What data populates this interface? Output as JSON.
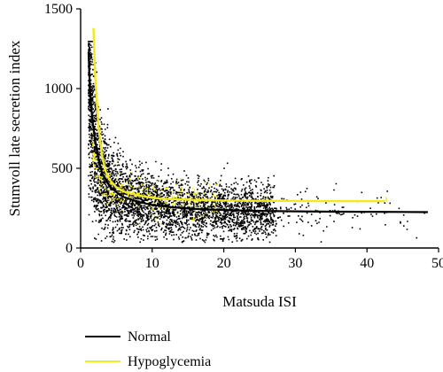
{
  "chart_data": {
    "type": "scatter",
    "title": "",
    "xlabel": "Matsuda ISI",
    "ylabel": "Stumvoll late secretion index",
    "xlim": [
      0,
      50
    ],
    "ylim": [
      0,
      1500
    ],
    "x_ticks": [
      "0",
      "10",
      "20",
      "30",
      "40",
      "50"
    ],
    "y_ticks": [
      "0",
      "500",
      "1000",
      "1500"
    ],
    "grid": false,
    "legend_position": "bottom-left",
    "series": [
      {
        "name": "Normal",
        "color": "#000000",
        "points_description": "dense scatter",
        "fit_curve": {
          "x": [
            1.1,
            1.3,
            1.6,
            2,
            2.5,
            3,
            4,
            5,
            6,
            8,
            10,
            13,
            16,
            20,
            25,
            30,
            35,
            40,
            45,
            48.5
          ],
          "y": [
            1230,
            1000,
            820,
            680,
            560,
            470,
            390,
            350,
            320,
            290,
            270,
            255,
            245,
            238,
            233,
            230,
            228,
            227,
            226,
            225
          ]
        },
        "scatter_density": "high"
      },
      {
        "name": "Hypoglycemia",
        "color": "#f2ea1e",
        "fit_curve": {
          "x": [
            1.8,
            2,
            2.5,
            3,
            3.5,
            4,
            5,
            6,
            8,
            10,
            12,
            15,
            20,
            25,
            30,
            35,
            40,
            42.5
          ],
          "y": [
            1380,
            1100,
            760,
            580,
            480,
            430,
            380,
            355,
            330,
            315,
            308,
            302,
            298,
            296,
            295,
            294,
            294,
            294
          ]
        },
        "endpoint_ticks": [
          {
            "x": 26,
            "y": [
              290,
              320
            ]
          },
          {
            "x": 42.7,
            "y": [
              290,
              320
            ]
          }
        ]
      }
    ]
  }
}
